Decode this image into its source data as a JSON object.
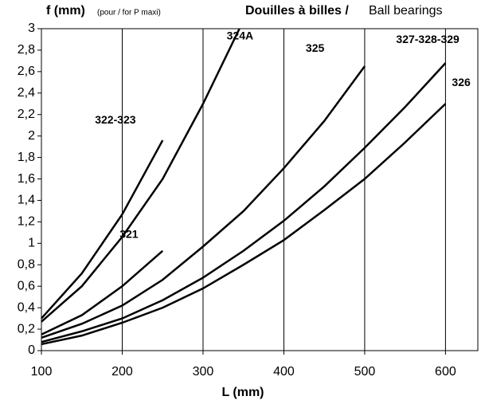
{
  "chart_data": {
    "type": "line",
    "y_label": "f (mm)",
    "y_label_note": "(pour / for P maxi)",
    "title": "Douilles à billes /",
    "subtitle": "Ball bearings",
    "x_label": "L (mm)",
    "xlim": [
      100,
      640
    ],
    "xticks": [
      100,
      200,
      300,
      400,
      500,
      600
    ],
    "ylim": [
      0,
      3
    ],
    "yticks": [
      0,
      {
        "value": 0.2,
        "label": "0,2"
      },
      {
        "value": 0.4,
        "label": "0,4"
      },
      {
        "value": 0.6,
        "label": "0,6"
      },
      {
        "value": 0.8,
        "label": "0,8"
      },
      1,
      {
        "value": 1.2,
        "label": "1,2"
      },
      {
        "value": 1.4,
        "label": "1,4"
      },
      {
        "value": 1.6,
        "label": "1,6"
      },
      {
        "value": 1.8,
        "label": "1,8"
      },
      2,
      {
        "value": 2.2,
        "label": "2,2"
      },
      {
        "value": 2.4,
        "label": "2,4"
      },
      {
        "value": 2.6,
        "label": "2,6"
      },
      {
        "value": 2.8,
        "label": "2,8"
      },
      3
    ],
    "grid": "x",
    "color": "#000000",
    "series": [
      {
        "name": "322-323",
        "x": [
          100,
          150,
          200,
          250
        ],
        "values": [
          0.3,
          0.72,
          1.27,
          1.96
        ]
      },
      {
        "name": "324A",
        "x": [
          100,
          150,
          200,
          250,
          300,
          345
        ],
        "values": [
          0.27,
          0.6,
          1.06,
          1.6,
          2.3,
          3.0
        ]
      },
      {
        "name": "321",
        "x": [
          100,
          150,
          200,
          250
        ],
        "values": [
          0.15,
          0.33,
          0.6,
          0.93
        ]
      },
      {
        "name": "325",
        "x": [
          100,
          150,
          200,
          250,
          300,
          350,
          400,
          450,
          500
        ],
        "values": [
          0.12,
          0.25,
          0.42,
          0.66,
          0.97,
          1.3,
          1.7,
          2.14,
          2.65
        ]
      },
      {
        "name": "327-328-329",
        "x": [
          100,
          150,
          200,
          250,
          300,
          350,
          400,
          450,
          500,
          550,
          600
        ],
        "values": [
          0.08,
          0.18,
          0.3,
          0.47,
          0.68,
          0.93,
          1.21,
          1.53,
          1.89,
          2.27,
          2.68
        ]
      },
      {
        "name": "326",
        "x": [
          100,
          150,
          200,
          250,
          300,
          350,
          400,
          450,
          500,
          550,
          600
        ],
        "values": [
          0.06,
          0.14,
          0.26,
          0.4,
          0.58,
          0.8,
          1.03,
          1.31,
          1.6,
          1.94,
          2.3
        ]
      }
    ]
  }
}
